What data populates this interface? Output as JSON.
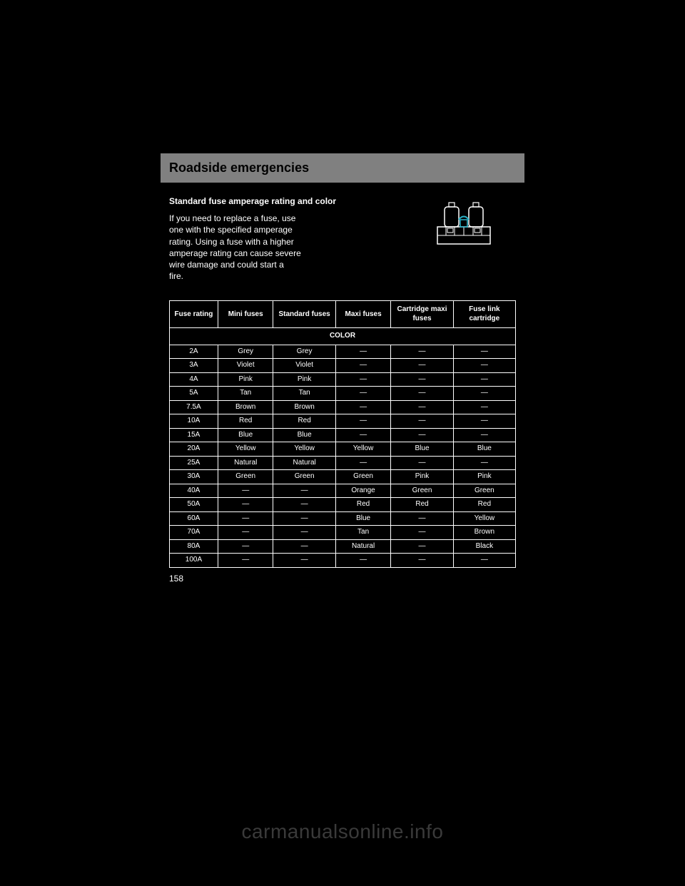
{
  "header": {
    "title": "Roadside emergencies"
  },
  "intro": {
    "p1": "Standard fuse amperage rating and color",
    "p2_a": "If you need to replace a fuse, use",
    "p2_b": "one with the specified amperage",
    "p2_c": "rating. Using a fuse with a higher",
    "p2_d": "amperage rating can cause severe",
    "p2_e": "wire damage and could start a",
    "p2_f": "fire."
  },
  "table": {
    "title": "COLOR",
    "columns": [
      "Fuse rating",
      "Mini fuses",
      "Standard fuses",
      "Maxi fuses",
      "Cartridge maxi fuses",
      "Fuse link cartridge"
    ],
    "rows": [
      [
        "2A",
        "Grey",
        "Grey",
        "—",
        "—",
        "—"
      ],
      [
        "3A",
        "Violet",
        "Violet",
        "—",
        "—",
        "—"
      ],
      [
        "4A",
        "Pink",
        "Pink",
        "—",
        "—",
        "—"
      ],
      [
        "5A",
        "Tan",
        "Tan",
        "—",
        "—",
        "—"
      ],
      [
        "7.5A",
        "Brown",
        "Brown",
        "—",
        "—",
        "—"
      ],
      [
        "10A",
        "Red",
        "Red",
        "—",
        "—",
        "—"
      ],
      [
        "15A",
        "Blue",
        "Blue",
        "—",
        "—",
        "—"
      ],
      [
        "20A",
        "Yellow",
        "Yellow",
        "Yellow",
        "Blue",
        "Blue"
      ],
      [
        "25A",
        "Natural",
        "Natural",
        "—",
        "—",
        "—"
      ],
      [
        "30A",
        "Green",
        "Green",
        "Green",
        "Pink",
        "Pink"
      ],
      [
        "40A",
        "—",
        "—",
        "Orange",
        "Green",
        "Green"
      ],
      [
        "50A",
        "—",
        "—",
        "Red",
        "Red",
        "Red"
      ],
      [
        "60A",
        "—",
        "—",
        "Blue",
        "—",
        "Yellow"
      ],
      [
        "70A",
        "—",
        "—",
        "Tan",
        "—",
        "Brown"
      ],
      [
        "80A",
        "—",
        "—",
        "Natural",
        "—",
        "Black"
      ],
      [
        "100A",
        "—",
        "—",
        "—",
        "—",
        "—"
      ]
    ],
    "col_widths_pct": [
      14,
      16,
      18,
      16,
      18,
      18
    ]
  },
  "page_number": "158",
  "watermark": "carmanualsonline.info",
  "illustration": {
    "name": "fuse-pair-icon",
    "stroke": "#ffffff",
    "accent": "#29b3c9",
    "bg": "#000000"
  }
}
